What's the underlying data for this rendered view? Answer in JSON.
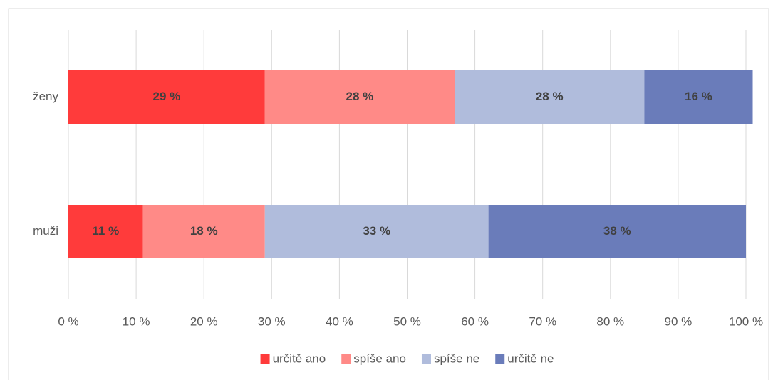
{
  "chart_data": {
    "type": "stacked-bar-horizontal",
    "categories": [
      "ženy",
      "muži"
    ],
    "series": [
      {
        "name": "určitě ano",
        "color": "#ff3b3b",
        "values": [
          29,
          11
        ],
        "value_labels": [
          "29 %",
          "11 %"
        ]
      },
      {
        "name": "spíše ano",
        "color": "#ff8a87",
        "values": [
          28,
          18
        ],
        "value_labels": [
          "28 %",
          "18 %"
        ]
      },
      {
        "name": "spíše ne",
        "color": "#b0bcdc",
        "values": [
          28,
          33
        ],
        "value_labels": [
          "28 %",
          "33 %"
        ]
      },
      {
        "name": "určitě ne",
        "color": "#6a7cba",
        "values": [
          16,
          38
        ],
        "value_labels": [
          "16 %",
          "38 %"
        ]
      }
    ],
    "xlim": [
      0,
      100
    ],
    "xticks": [
      {
        "value": 0,
        "label": "0 %"
      },
      {
        "value": 10,
        "label": "10 %"
      },
      {
        "value": 20,
        "label": "20 %"
      },
      {
        "value": 30,
        "label": "30 %"
      },
      {
        "value": 40,
        "label": "40 %"
      },
      {
        "value": 50,
        "label": "50 %"
      },
      {
        "value": 60,
        "label": "60 %"
      },
      {
        "value": 70,
        "label": "70 %"
      },
      {
        "value": 80,
        "label": "80 %"
      },
      {
        "value": 90,
        "label": "90 %"
      },
      {
        "value": 100,
        "label": "100 %"
      }
    ],
    "grid": true,
    "legend": "bottom"
  }
}
